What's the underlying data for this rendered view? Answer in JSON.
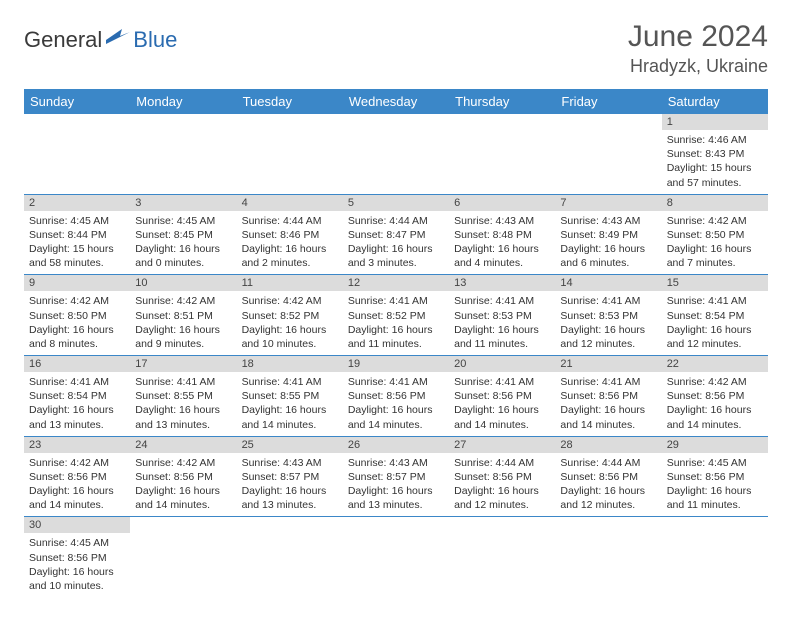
{
  "brand": {
    "part1": "General",
    "part2": "Blue"
  },
  "title": "June 2024",
  "location": "Hradyzk, Ukraine",
  "colors": {
    "header_bg": "#3b87c8",
    "header_text": "#ffffff",
    "daynum_bg": "#dcdcdc",
    "row_divider": "#3b87c8",
    "brand_accent": "#2a6bb0",
    "text": "#333333"
  },
  "days_of_week": [
    "Sunday",
    "Monday",
    "Tuesday",
    "Wednesday",
    "Thursday",
    "Friday",
    "Saturday"
  ],
  "weeks": [
    [
      null,
      null,
      null,
      null,
      null,
      null,
      {
        "n": "1",
        "sunrise": "Sunrise: 4:46 AM",
        "sunset": "Sunset: 8:43 PM",
        "daylight": "Daylight: 15 hours and 57 minutes."
      }
    ],
    [
      {
        "n": "2",
        "sunrise": "Sunrise: 4:45 AM",
        "sunset": "Sunset: 8:44 PM",
        "daylight": "Daylight: 15 hours and 58 minutes."
      },
      {
        "n": "3",
        "sunrise": "Sunrise: 4:45 AM",
        "sunset": "Sunset: 8:45 PM",
        "daylight": "Daylight: 16 hours and 0 minutes."
      },
      {
        "n": "4",
        "sunrise": "Sunrise: 4:44 AM",
        "sunset": "Sunset: 8:46 PM",
        "daylight": "Daylight: 16 hours and 2 minutes."
      },
      {
        "n": "5",
        "sunrise": "Sunrise: 4:44 AM",
        "sunset": "Sunset: 8:47 PM",
        "daylight": "Daylight: 16 hours and 3 minutes."
      },
      {
        "n": "6",
        "sunrise": "Sunrise: 4:43 AM",
        "sunset": "Sunset: 8:48 PM",
        "daylight": "Daylight: 16 hours and 4 minutes."
      },
      {
        "n": "7",
        "sunrise": "Sunrise: 4:43 AM",
        "sunset": "Sunset: 8:49 PM",
        "daylight": "Daylight: 16 hours and 6 minutes."
      },
      {
        "n": "8",
        "sunrise": "Sunrise: 4:42 AM",
        "sunset": "Sunset: 8:50 PM",
        "daylight": "Daylight: 16 hours and 7 minutes."
      }
    ],
    [
      {
        "n": "9",
        "sunrise": "Sunrise: 4:42 AM",
        "sunset": "Sunset: 8:50 PM",
        "daylight": "Daylight: 16 hours and 8 minutes."
      },
      {
        "n": "10",
        "sunrise": "Sunrise: 4:42 AM",
        "sunset": "Sunset: 8:51 PM",
        "daylight": "Daylight: 16 hours and 9 minutes."
      },
      {
        "n": "11",
        "sunrise": "Sunrise: 4:42 AM",
        "sunset": "Sunset: 8:52 PM",
        "daylight": "Daylight: 16 hours and 10 minutes."
      },
      {
        "n": "12",
        "sunrise": "Sunrise: 4:41 AM",
        "sunset": "Sunset: 8:52 PM",
        "daylight": "Daylight: 16 hours and 11 minutes."
      },
      {
        "n": "13",
        "sunrise": "Sunrise: 4:41 AM",
        "sunset": "Sunset: 8:53 PM",
        "daylight": "Daylight: 16 hours and 11 minutes."
      },
      {
        "n": "14",
        "sunrise": "Sunrise: 4:41 AM",
        "sunset": "Sunset: 8:53 PM",
        "daylight": "Daylight: 16 hours and 12 minutes."
      },
      {
        "n": "15",
        "sunrise": "Sunrise: 4:41 AM",
        "sunset": "Sunset: 8:54 PM",
        "daylight": "Daylight: 16 hours and 12 minutes."
      }
    ],
    [
      {
        "n": "16",
        "sunrise": "Sunrise: 4:41 AM",
        "sunset": "Sunset: 8:54 PM",
        "daylight": "Daylight: 16 hours and 13 minutes."
      },
      {
        "n": "17",
        "sunrise": "Sunrise: 4:41 AM",
        "sunset": "Sunset: 8:55 PM",
        "daylight": "Daylight: 16 hours and 13 minutes."
      },
      {
        "n": "18",
        "sunrise": "Sunrise: 4:41 AM",
        "sunset": "Sunset: 8:55 PM",
        "daylight": "Daylight: 16 hours and 14 minutes."
      },
      {
        "n": "19",
        "sunrise": "Sunrise: 4:41 AM",
        "sunset": "Sunset: 8:56 PM",
        "daylight": "Daylight: 16 hours and 14 minutes."
      },
      {
        "n": "20",
        "sunrise": "Sunrise: 4:41 AM",
        "sunset": "Sunset: 8:56 PM",
        "daylight": "Daylight: 16 hours and 14 minutes."
      },
      {
        "n": "21",
        "sunrise": "Sunrise: 4:41 AM",
        "sunset": "Sunset: 8:56 PM",
        "daylight": "Daylight: 16 hours and 14 minutes."
      },
      {
        "n": "22",
        "sunrise": "Sunrise: 4:42 AM",
        "sunset": "Sunset: 8:56 PM",
        "daylight": "Daylight: 16 hours and 14 minutes."
      }
    ],
    [
      {
        "n": "23",
        "sunrise": "Sunrise: 4:42 AM",
        "sunset": "Sunset: 8:56 PM",
        "daylight": "Daylight: 16 hours and 14 minutes."
      },
      {
        "n": "24",
        "sunrise": "Sunrise: 4:42 AM",
        "sunset": "Sunset: 8:56 PM",
        "daylight": "Daylight: 16 hours and 14 minutes."
      },
      {
        "n": "25",
        "sunrise": "Sunrise: 4:43 AM",
        "sunset": "Sunset: 8:57 PM",
        "daylight": "Daylight: 16 hours and 13 minutes."
      },
      {
        "n": "26",
        "sunrise": "Sunrise: 4:43 AM",
        "sunset": "Sunset: 8:57 PM",
        "daylight": "Daylight: 16 hours and 13 minutes."
      },
      {
        "n": "27",
        "sunrise": "Sunrise: 4:44 AM",
        "sunset": "Sunset: 8:56 PM",
        "daylight": "Daylight: 16 hours and 12 minutes."
      },
      {
        "n": "28",
        "sunrise": "Sunrise: 4:44 AM",
        "sunset": "Sunset: 8:56 PM",
        "daylight": "Daylight: 16 hours and 12 minutes."
      },
      {
        "n": "29",
        "sunrise": "Sunrise: 4:45 AM",
        "sunset": "Sunset: 8:56 PM",
        "daylight": "Daylight: 16 hours and 11 minutes."
      }
    ],
    [
      {
        "n": "30",
        "sunrise": "Sunrise: 4:45 AM",
        "sunset": "Sunset: 8:56 PM",
        "daylight": "Daylight: 16 hours and 10 minutes."
      },
      null,
      null,
      null,
      null,
      null,
      null
    ]
  ]
}
